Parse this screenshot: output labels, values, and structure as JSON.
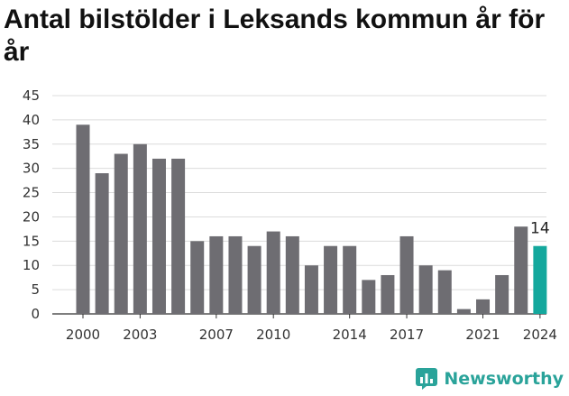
{
  "title": "Antal bilstölder i Leksands kommun år för år",
  "brand": {
    "name": "Newsworthy",
    "icon": "newsworthy-logo-icon",
    "color": "#2aa39a"
  },
  "chart_data": {
    "type": "bar",
    "title": "Antal bilstölder i Leksands kommun år för år",
    "xlabel": "",
    "ylabel": "",
    "x": [
      2000,
      2001,
      2002,
      2003,
      2004,
      2005,
      2006,
      2007,
      2008,
      2009,
      2010,
      2011,
      2012,
      2013,
      2014,
      2015,
      2016,
      2017,
      2018,
      2019,
      2020,
      2021,
      2022,
      2023,
      2024
    ],
    "values": [
      39,
      29,
      33,
      35,
      32,
      32,
      15,
      16,
      16,
      14,
      17,
      16,
      10,
      14,
      14,
      7,
      8,
      16,
      10,
      9,
      1,
      3,
      8,
      18,
      14
    ],
    "x_tick_labels": [
      2000,
      2003,
      2007,
      2010,
      2014,
      2017,
      2021,
      2024
    ],
    "y_ticks": [
      0,
      5,
      10,
      15,
      20,
      25,
      30,
      35,
      40,
      45
    ],
    "ylim": [
      0,
      45
    ],
    "grid": true,
    "bar_color": "#6e6d72",
    "highlight_color": "#14a89d",
    "highlight_index": 24,
    "data_labels": [
      {
        "index": 24,
        "text": "14"
      }
    ]
  }
}
